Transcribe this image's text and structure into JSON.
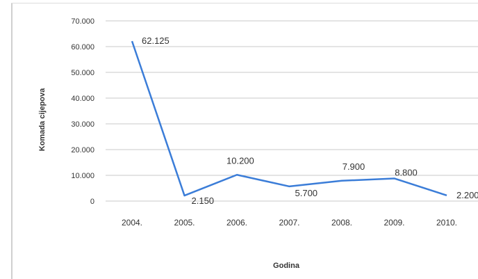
{
  "chart_data": {
    "type": "line",
    "categories": [
      "2004.",
      "2005.",
      "2006.",
      "2007.",
      "2008.",
      "2009.",
      "2010."
    ],
    "series": [
      {
        "values": [
          62125,
          2150,
          10200,
          5700,
          7900,
          8800,
          2200
        ],
        "labels": [
          "62.125",
          "2.150",
          "10.200",
          "5.700",
          "7.900",
          "8.800",
          "2.200"
        ]
      }
    ],
    "ylim": [
      0,
      70000
    ],
    "yticks": [
      0,
      10000,
      20000,
      30000,
      40000,
      50000,
      60000,
      70000
    ],
    "ytick_labels": [
      "0",
      "10.000",
      "20.000",
      "30.000",
      "40.000",
      "50.000",
      "60.000",
      "70.000"
    ],
    "xlabel": "Godina",
    "ylabel": "Komada cijepova",
    "grid": true,
    "line_color": "#3b7dd8",
    "grid_color": "#c8c8c8",
    "legend": "none"
  }
}
